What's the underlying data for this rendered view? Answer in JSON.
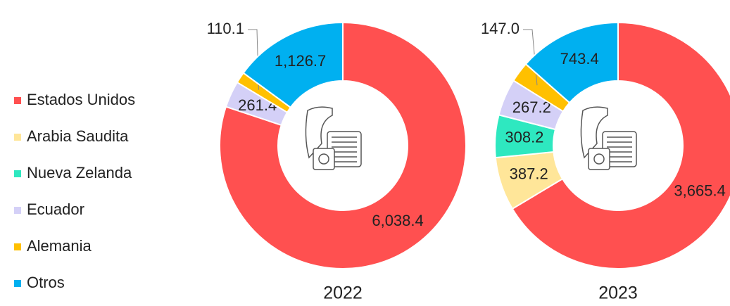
{
  "chart_data": [
    {
      "type": "pie",
      "title": "2022",
      "categories": [
        "Estados Unidos",
        "Arabia Saudita",
        "Nueva Zelanda",
        "Ecuador",
        "Alemania",
        "Otros"
      ],
      "colors": [
        "#ff5050",
        "#ffe699",
        "#2ee8c0",
        "#d4d0f7",
        "#ffc000",
        "#00b0f0"
      ],
      "values": [
        6038.4,
        null,
        null,
        261.4,
        110.1,
        1126.7
      ],
      "value_labels": [
        "6,038.4",
        null,
        null,
        "261.4",
        "110.1",
        "1,126.7"
      ]
    },
    {
      "type": "pie",
      "title": "2023",
      "categories": [
        "Estados Unidos",
        "Arabia Saudita",
        "Nueva Zelanda",
        "Ecuador",
        "Alemania",
        "Otros"
      ],
      "colors": [
        "#ff5050",
        "#ffe699",
        "#2ee8c0",
        "#d4d0f7",
        "#ffc000",
        "#00b0f0"
      ],
      "values": [
        3665.4,
        387.2,
        308.2,
        267.2,
        147.0,
        743.4
      ],
      "value_labels": [
        "3,665.4",
        "387.2",
        "308.2",
        "267.2",
        "147.0",
        "743.4"
      ]
    }
  ]
}
